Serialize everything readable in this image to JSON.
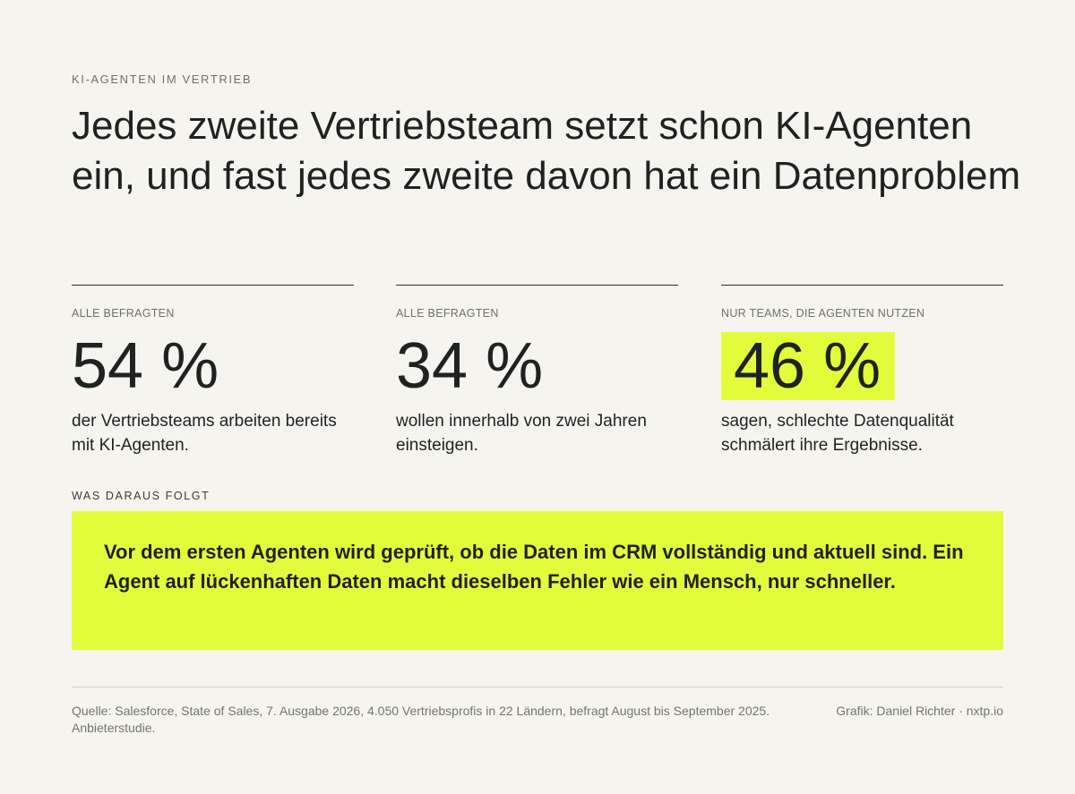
{
  "kicker": "KI-AGENTEN IM VERTRIEB",
  "headline": "Jedes zweite Vertriebsteam setzt schon KI-Agenten ein, und fast jedes zweite davon hat ein Datenproblem",
  "stats": [
    {
      "label": "ALLE BEFRAGTEN",
      "value": "54 %",
      "description": "der Vertriebsteams arbeiten bereits mit KI-Agenten.",
      "highlighted": false
    },
    {
      "label": "ALLE BEFRAGTEN",
      "value": "34 %",
      "description": "wollen innerhalb von zwei Jahren einsteigen.",
      "highlighted": false
    },
    {
      "label": "NUR TEAMS, DIE AGENTEN NUTZEN",
      "value": "46 %",
      "description": "sagen, schlechte Datenqualität schmälert ihre Ergebnisse.",
      "highlighted": true
    }
  ],
  "conclusion": {
    "label": "WAS DARAUS FOLGT",
    "text": "Vor dem ersten Agenten wird geprüft, ob die Daten im CRM vollständig und aktuell sind. Ein Agent auf lückenhaften Daten macht dieselben Fehler wie ein Mensch, nur schneller."
  },
  "footer": {
    "source": "Quelle: Salesforce, State of Sales, 7. Ausgabe 2026, 4.050 Vertriebsprofis in 22 Ländern, befragt August bis September 2025. Anbieterstudie.",
    "credit": "Grafik: Daniel Richter · nxtp.io"
  },
  "colors": {
    "background": "#f6f4ef",
    "highlight": "#e2fc3c",
    "text": "#1e2320",
    "muted": "#6f716c"
  }
}
